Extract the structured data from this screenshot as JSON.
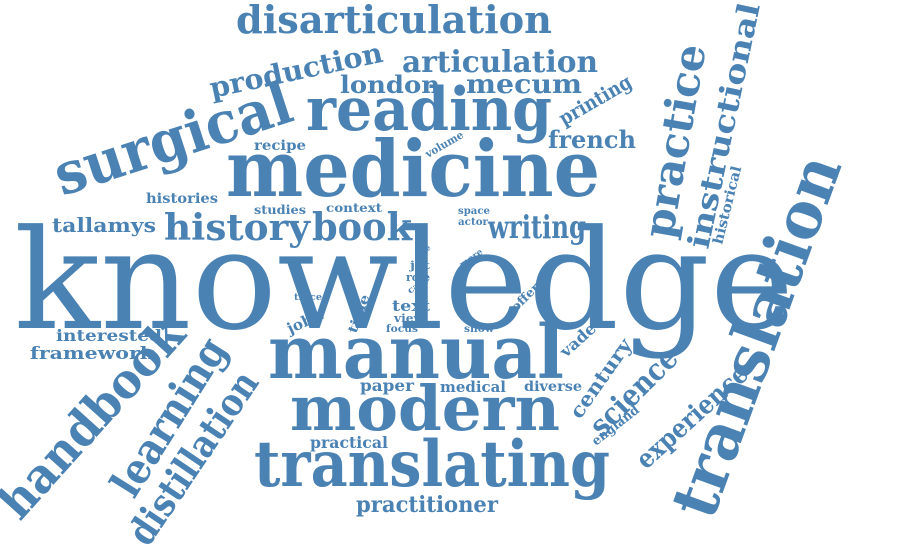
{
  "color": "#4a82b4",
  "words": [
    {
      "id": "knowledge",
      "text": "knowledge"
    },
    {
      "id": "medicine",
      "text": "medicine"
    },
    {
      "id": "manual",
      "text": "manual"
    },
    {
      "id": "modern",
      "text": "modern"
    },
    {
      "id": "translating",
      "text": "translating"
    },
    {
      "id": "translation",
      "text": "translation"
    },
    {
      "id": "reading",
      "text": "reading"
    },
    {
      "id": "surgical",
      "text": "surgical"
    },
    {
      "id": "disarticulation",
      "text": "disarticulation"
    },
    {
      "id": "articulation",
      "text": "articulation"
    },
    {
      "id": "production",
      "text": "production"
    },
    {
      "id": "london",
      "text": "london"
    },
    {
      "id": "mecum",
      "text": "mecum"
    },
    {
      "id": "history",
      "text": "history"
    },
    {
      "id": "book",
      "text": "book"
    },
    {
      "id": "writing",
      "text": "writing"
    },
    {
      "id": "practice",
      "text": "practice"
    },
    {
      "id": "instructional",
      "text": "instructional"
    },
    {
      "id": "handbook",
      "text": "handbook"
    },
    {
      "id": "learning",
      "text": "learning"
    },
    {
      "id": "distillation",
      "text": "distillation"
    },
    {
      "id": "science",
      "text": "science"
    },
    {
      "id": "century",
      "text": "century"
    },
    {
      "id": "experience",
      "text": "experience"
    },
    {
      "id": "practitioner",
      "text": "practitioner"
    },
    {
      "id": "printing",
      "text": "printing"
    },
    {
      "id": "french",
      "text": "french"
    },
    {
      "id": "tallamys",
      "text": "tallamys"
    },
    {
      "id": "framework",
      "text": "framework"
    },
    {
      "id": "interested",
      "text": "interested"
    },
    {
      "id": "histories",
      "text": "histories"
    },
    {
      "id": "recipe",
      "text": "recipe"
    },
    {
      "id": "volume",
      "text": "volume"
    },
    {
      "id": "studies",
      "text": "studies"
    },
    {
      "id": "context",
      "text": "context"
    },
    {
      "id": "historical",
      "text": "historical"
    },
    {
      "id": "space",
      "text": "space"
    },
    {
      "id": "actor",
      "text": "actor"
    },
    {
      "id": "more",
      "text": "more"
    },
    {
      "id": "title",
      "text": "title"
    },
    {
      "id": "jat",
      "text": "jat"
    },
    {
      "id": "role",
      "text": "role"
    },
    {
      "id": "case",
      "text": "case"
    },
    {
      "id": "offer",
      "text": "offer"
    },
    {
      "id": "text",
      "text": "text"
    },
    {
      "id": "view",
      "text": "view"
    },
    {
      "id": "focus",
      "text": "focus"
    },
    {
      "id": "show",
      "text": "show"
    },
    {
      "id": "time",
      "text": "time"
    },
    {
      "id": "trace",
      "text": "trace"
    },
    {
      "id": "john",
      "text": "john"
    },
    {
      "id": "vade",
      "text": "vade"
    },
    {
      "id": "paper",
      "text": "paper"
    },
    {
      "id": "medical",
      "text": "medical"
    },
    {
      "id": "diverse",
      "text": "diverse"
    },
    {
      "id": "england",
      "text": "england"
    },
    {
      "id": "practical",
      "text": "practical"
    }
  ]
}
